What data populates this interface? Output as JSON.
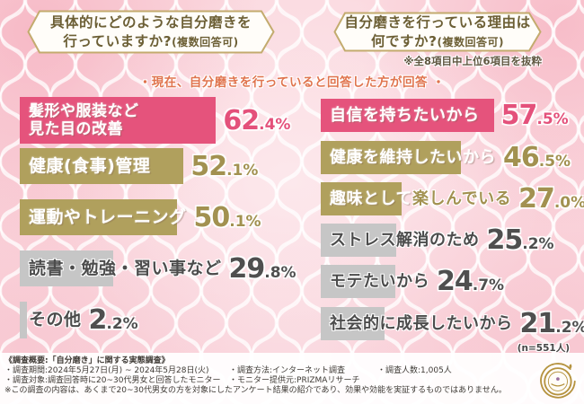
{
  "palette": {
    "background_pink": "#fbdbe1",
    "bar_pink": "#e5537c",
    "bar_gold": "#b0a05d",
    "bar_gray": "#c6c6c6",
    "value_pink": "#e4517b",
    "value_gold": "#a29150",
    "value_gray": "#4f4f4f",
    "header_border_gold": "#c3ab6e",
    "note_orange": "#e0744e"
  },
  "headers": {
    "left": {
      "line1": "具体的にどのような自分磨きを",
      "line2_main": "行っていますか?",
      "line2_sub": "(複数回答可)"
    },
    "right": {
      "line1": "自分磨きを行っている理由は",
      "line2_main": "何ですか?",
      "line2_sub": "(複数回答可)"
    },
    "right_note": "※全8項目中上位6項目を抜粋"
  },
  "middle_note": "・現在、自分磨きを行っていると回答した方が回答 ・",
  "chart_data": [
    {
      "type": "bar",
      "orientation": "horizontal",
      "title": "具体的にどのような自分磨きを行っていますか?(複数回答可)",
      "unit": "%",
      "xlim": [
        0,
        70
      ],
      "categories": [
        "髪形や服装など見た目の改善",
        "健康(食事)管理",
        "運動やトレーニング",
        "読書・勉強・習い事など",
        "その他"
      ],
      "values": [
        62.4,
        52.1,
        50.1,
        29.8,
        2.2
      ],
      "bars": [
        {
          "label_lines": [
            "髪形や服装など",
            "見た目の改善"
          ],
          "value": 62.4,
          "color": "pink"
        },
        {
          "label_lines": [
            "健康(食事)管理"
          ],
          "value": 52.1,
          "color": "gold"
        },
        {
          "label_lines": [
            "運動やトレーニング"
          ],
          "value": 50.1,
          "color": "gold"
        },
        {
          "label_lines": [
            "読書・勉強・習い事など"
          ],
          "value": 29.8,
          "color": "gray"
        },
        {
          "label_lines": [
            "その他"
          ],
          "value": 2.2,
          "color": "gray"
        }
      ]
    },
    {
      "type": "bar",
      "orientation": "horizontal",
      "title": "自分磨きを行っている理由は何ですか?(複数回答可)",
      "note": "※全8項目中上位6項目を抜粋",
      "unit": "%",
      "xlim": [
        0,
        70
      ],
      "sample": "(n=551人)",
      "categories": [
        "自信を持ちたいから",
        "健康を維持したいから",
        "趣味として楽しんでいる",
        "ストレス解消のため",
        "モテたいから",
        "社会的に成長したいから"
      ],
      "values": [
        57.5,
        46.5,
        27.0,
        25.2,
        24.7,
        21.2
      ],
      "bars": [
        {
          "label_lines": [
            "自信を持ちたいから"
          ],
          "value": 57.5,
          "color": "pink"
        },
        {
          "label_lines": [
            "健康を維持したいから"
          ],
          "value": 46.5,
          "color": "gold"
        },
        {
          "label_lines": [
            "趣味として"
          ],
          "label_overflow": "楽しんでいる",
          "value": 27.0,
          "color": "gold"
        },
        {
          "label_lines": [
            "ストレス解消のため"
          ],
          "value": 25.2,
          "color": "gray"
        },
        {
          "label_lines": [
            "モテたいから"
          ],
          "value": 24.7,
          "color": "gray"
        },
        {
          "label_lines": [
            "社会的に成長したいから"
          ],
          "value": 21.2,
          "color": "gray"
        }
      ]
    }
  ],
  "sample_note": "(n=551人)",
  "footer": {
    "title": "《調査概要:「自分磨き」に関する実態調査》",
    "row1": [
      "・調査期間:2024年5月27日(月) ~ 2024年5月28日(火)",
      "・調査方法:インターネット調査",
      "・調査人数:1,005人"
    ],
    "row2": [
      "・調査対象:調査回答時に20~30代男女と回答したモニター",
      "・モニター提供元:PRIZMAリサーチ"
    ],
    "disclaimer": "※この調査の内容は、あくまで20~30代男女の方を対象にしたアンケート結果の紹介であり、効果や効能を実証するものではありません。",
    "logo_icon": "circular-gold-emblem"
  }
}
